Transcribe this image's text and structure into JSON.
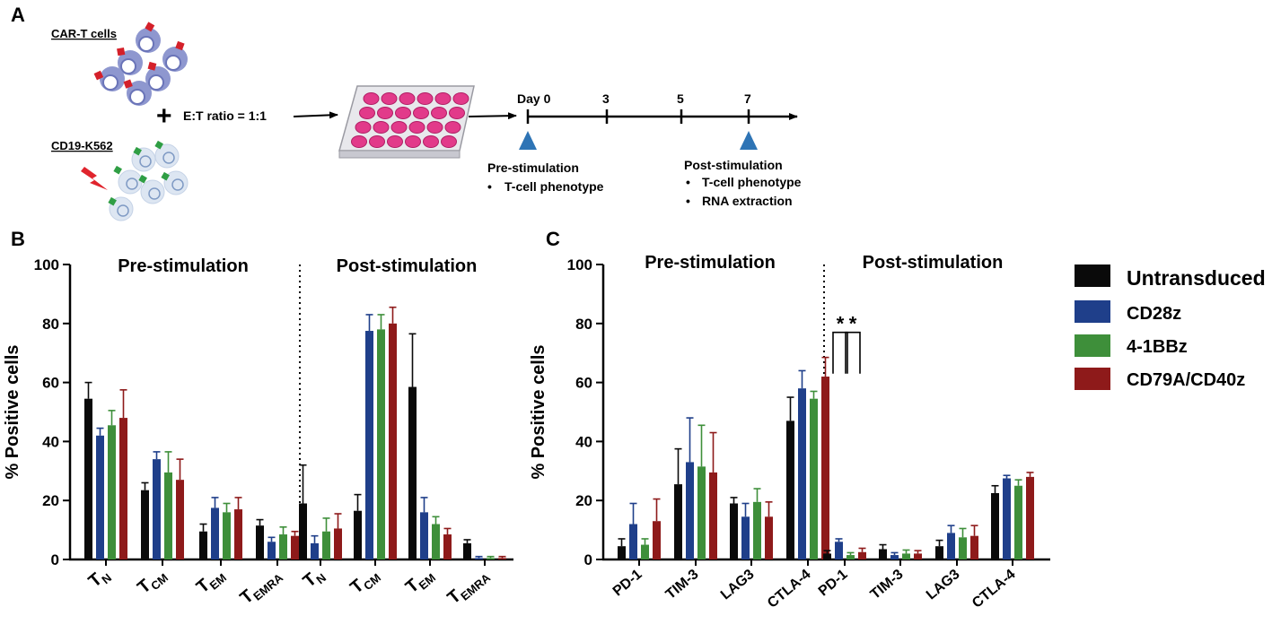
{
  "panel_a": {
    "label": "A",
    "car_t_label": "CAR-T cells",
    "target_label": "CD19-K562",
    "ratio_label": "E:T ratio = 1:1",
    "plus_sign": "+",
    "timeline": {
      "ticks": [
        "Day 0",
        "3",
        "5",
        "7"
      ],
      "pre_title": "Pre-stimulation",
      "pre_items": [
        "T-cell phenotype"
      ],
      "post_title": "Post-stimulation",
      "post_items": [
        "T-cell phenotype",
        "RNA extraction"
      ],
      "bullet": "•"
    }
  },
  "legend": {
    "entries": [
      {
        "name": "Untransduced",
        "color": "#0a0a0a"
      },
      {
        "name": "CD28z",
        "color": "#1f3f8a"
      },
      {
        "name": "4-1BBz",
        "color": "#3e8f3a"
      },
      {
        "name": "CD79A/CD40z",
        "color": "#8e1a1a"
      }
    ]
  },
  "chart_data": [
    {
      "panel": "B",
      "type": "bar",
      "ylabel": "% Positive cells",
      "ylim": [
        0,
        100
      ],
      "yticks": [
        "0",
        "20",
        "40",
        "60",
        "80",
        "100"
      ],
      "section_titles": [
        "Pre-stimulation",
        "Post-stimulation"
      ],
      "groups": [
        {
          "main": "T",
          "sub": "N"
        },
        {
          "main": "T",
          "sub": "CM"
        },
        {
          "main": "T",
          "sub": "EM"
        },
        {
          "main": "T",
          "sub": "EMRA"
        },
        {
          "main": "T",
          "sub": "N"
        },
        {
          "main": "T",
          "sub": "CM"
        },
        {
          "main": "T",
          "sub": "EM"
        },
        {
          "main": "T",
          "sub": "EMRA"
        }
      ],
      "series": [
        {
          "name": "Untransduced",
          "values": [
            54.5,
            23.5,
            9.5,
            11.5,
            19,
            16.5,
            58.5,
            5.5
          ],
          "errors": [
            5.5,
            2.5,
            2.5,
            2,
            13,
            5.5,
            18,
            1.2
          ]
        },
        {
          "name": "CD28z",
          "values": [
            42,
            34,
            17.5,
            6,
            5.5,
            77.5,
            16,
            0.5
          ],
          "errors": [
            2.5,
            2.5,
            3.5,
            1.5,
            2.5,
            5.5,
            5,
            0.5
          ]
        },
        {
          "name": "4-1BBz",
          "values": [
            45.5,
            29.5,
            16,
            8.5,
            9.5,
            78,
            12,
            0.5
          ],
          "errors": [
            5,
            7,
            3,
            2.5,
            4.5,
            5,
            2.5,
            0.5
          ]
        },
        {
          "name": "CD79A/CD40z",
          "values": [
            48,
            27,
            17,
            8,
            10.5,
            80,
            8.5,
            0.5
          ],
          "errors": [
            9.5,
            7,
            4,
            1.5,
            5,
            5.5,
            2,
            0.5
          ]
        }
      ]
    },
    {
      "panel": "C",
      "type": "bar",
      "ylabel": "% Positive cells",
      "ylim": [
        0,
        100
      ],
      "yticks": [
        "0",
        "20",
        "40",
        "60",
        "80",
        "100"
      ],
      "section_titles": [
        "Pre-stimulation",
        "Post-stimulation"
      ],
      "groups": [
        "PD-1",
        "TIM-3",
        "LAG3",
        "CTLA-4",
        "PD-1",
        "TIM-3",
        "LAG3",
        "CTLA-4"
      ],
      "series": [
        {
          "name": "Untransduced",
          "values": [
            4.5,
            25.5,
            19,
            47,
            2,
            3.5,
            4.5,
            22.5
          ],
          "errors": [
            2.5,
            12,
            2,
            8,
            1,
            1.5,
            2,
            2.5
          ]
        },
        {
          "name": "CD28z",
          "values": [
            12,
            33,
            14.5,
            58,
            6,
            1.5,
            9,
            27.5
          ],
          "errors": [
            7,
            15,
            4.5,
            6,
            1,
            0.8,
            2.5,
            1
          ]
        },
        {
          "name": "4-1BBz",
          "values": [
            5,
            31.5,
            19.5,
            54.5,
            1.5,
            2,
            7.5,
            25
          ],
          "errors": [
            2,
            14,
            4.5,
            2.5,
            0.8,
            1.2,
            3,
            2
          ]
        },
        {
          "name": "CD79A/CD40z",
          "values": [
            13,
            29.5,
            14.5,
            62,
            2.5,
            2,
            8,
            28
          ],
          "errors": [
            7.5,
            13.5,
            5,
            6.5,
            1.3,
            1,
            3.5,
            1.5
          ]
        }
      ],
      "significance_markers": [
        "*",
        "*"
      ]
    }
  ]
}
